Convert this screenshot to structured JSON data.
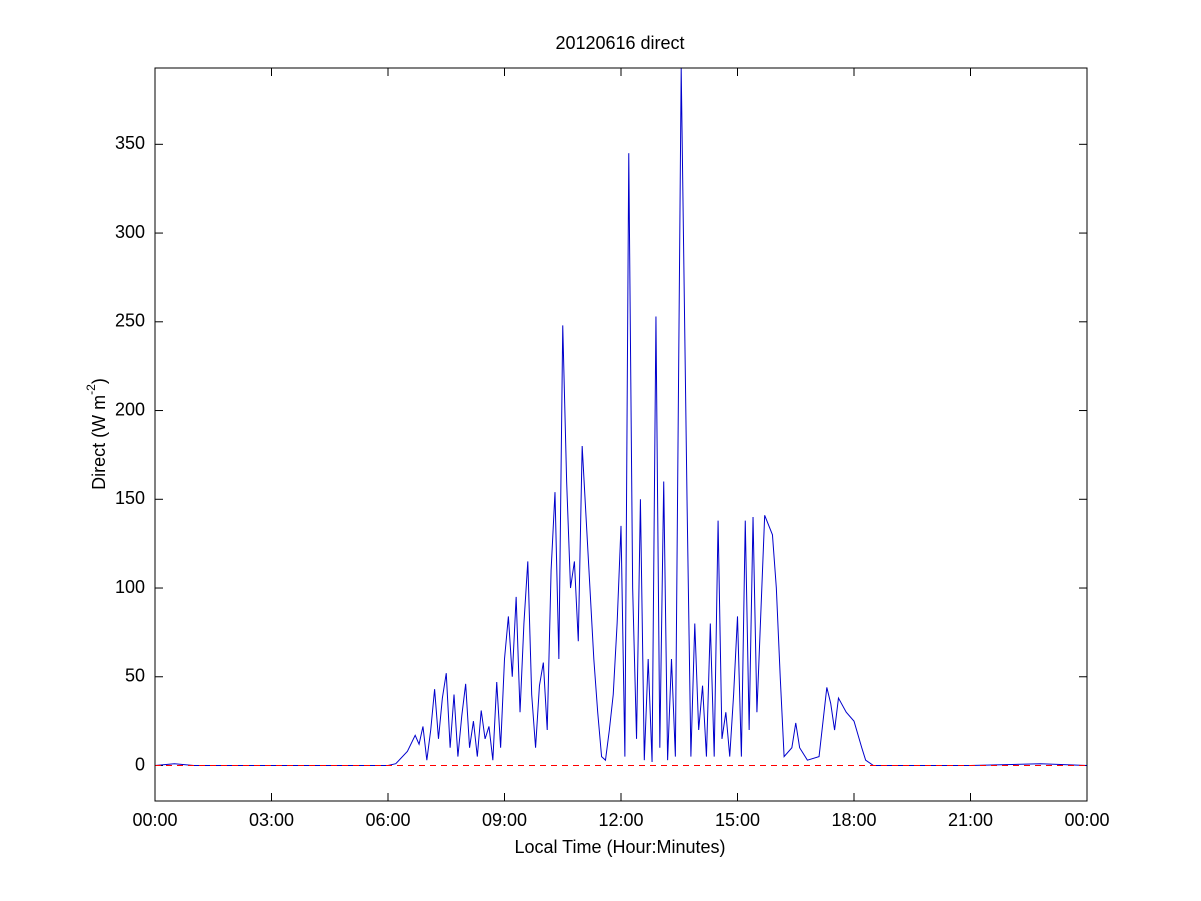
{
  "chart_data": {
    "type": "line",
    "title": "20120616 direct",
    "xlabel": "Local Time (Hour:Minutes)",
    "ylabel": [
      "Direct (W m",
      "-2",
      ")"
    ],
    "x": [
      0,
      0.5,
      1,
      6,
      6.2,
      6.5,
      6.7,
      6.8,
      6.9,
      7.0,
      7.1,
      7.2,
      7.3,
      7.4,
      7.5,
      7.6,
      7.7,
      7.8,
      7.9,
      8.0,
      8.1,
      8.2,
      8.3,
      8.4,
      8.5,
      8.6,
      8.7,
      8.8,
      8.9,
      9.0,
      9.1,
      9.2,
      9.3,
      9.4,
      9.5,
      9.6,
      9.7,
      9.8,
      9.9,
      10.0,
      10.1,
      10.2,
      10.3,
      10.4,
      10.5,
      10.6,
      10.7,
      10.8,
      10.9,
      11.0,
      11.1,
      11.2,
      11.3,
      11.4,
      11.5,
      11.6,
      11.7,
      11.8,
      11.9,
      12.0,
      12.1,
      12.2,
      12.3,
      12.4,
      12.5,
      12.6,
      12.7,
      12.8,
      12.9,
      13.0,
      13.1,
      13.2,
      13.3,
      13.4,
      13.55,
      13.7,
      13.8,
      13.9,
      14.0,
      14.1,
      14.2,
      14.3,
      14.4,
      14.5,
      14.6,
      14.7,
      14.8,
      14.9,
      15.0,
      15.1,
      15.2,
      15.3,
      15.4,
      15.5,
      15.7,
      15.9,
      16.0,
      16.1,
      16.2,
      16.4,
      16.5,
      16.6,
      16.8,
      17.1,
      17.3,
      17.4,
      17.5,
      17.6,
      17.8,
      18.0,
      18.2,
      18.3,
      18.5,
      21,
      22.8,
      24
    ],
    "series": [
      {
        "color": "#0000cc",
        "values": [
          0,
          1,
          0,
          0,
          1,
          8,
          17,
          12,
          22,
          3,
          20,
          43,
          15,
          38,
          52,
          10,
          40,
          5,
          28,
          46,
          10,
          25,
          5,
          31,
          15,
          22,
          3,
          47,
          10,
          60,
          84,
          50,
          95,
          30,
          80,
          115,
          40,
          10,
          45,
          58,
          20,
          110,
          154,
          60,
          248,
          160,
          100,
          115,
          70,
          180,
          140,
          100,
          60,
          30,
          5,
          3,
          20,
          40,
          80,
          135,
          5,
          345,
          100,
          15,
          150,
          3,
          60,
          2,
          253,
          10,
          160,
          3,
          60,
          5,
          393,
          150,
          5,
          80,
          20,
          45,
          5,
          80,
          5,
          138,
          15,
          30,
          5,
          40,
          84,
          5,
          138,
          20,
          140,
          30,
          141,
          130,
          100,
          50,
          5,
          10,
          24,
          10,
          3,
          5,
          44,
          35,
          20,
          38,
          30,
          25,
          10,
          3,
          0,
          0,
          1,
          0
        ]
      }
    ],
    "reference_line": {
      "value": 0,
      "color": "#ff0000",
      "dashed": true
    },
    "xlim": [
      0,
      24
    ],
    "xticks": [
      {
        "value": 0,
        "label": "00:00"
      },
      {
        "value": 3,
        "label": "03:00"
      },
      {
        "value": 6,
        "label": "06:00"
      },
      {
        "value": 9,
        "label": "09:00"
      },
      {
        "value": 12,
        "label": "12:00"
      },
      {
        "value": 15,
        "label": "15:00"
      },
      {
        "value": 18,
        "label": "18:00"
      },
      {
        "value": 21,
        "label": "21:00"
      },
      {
        "value": 24,
        "label": "00:00"
      }
    ],
    "ylim": [
      -20,
      393
    ],
    "yticks": [
      0,
      50,
      100,
      150,
      200,
      250,
      300,
      350
    ]
  }
}
